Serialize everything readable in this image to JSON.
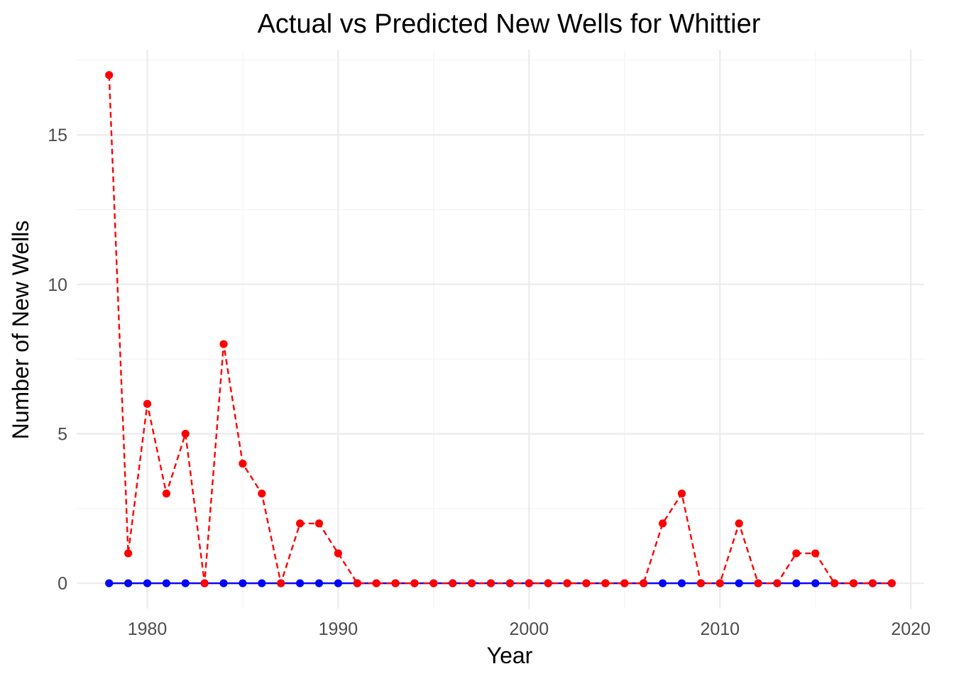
{
  "chart_data": {
    "type": "line",
    "title": "Actual vs Predicted New Wells for Whittier",
    "xlabel": "Year",
    "ylabel": "Number of New Wells",
    "xlim": [
      1976.3,
      2020.7
    ],
    "ylim": [
      -0.85,
      17.85
    ],
    "x_ticks": [
      1980,
      1990,
      2000,
      2010,
      2020
    ],
    "y_ticks": [
      0,
      5,
      10,
      15
    ],
    "grid": true,
    "legend": "none",
    "x": [
      1978,
      1979,
      1980,
      1981,
      1982,
      1983,
      1984,
      1985,
      1986,
      1987,
      1988,
      1989,
      1990,
      1991,
      1992,
      1993,
      1994,
      1995,
      1996,
      1997,
      1998,
      1999,
      2000,
      2001,
      2002,
      2003,
      2004,
      2005,
      2006,
      2007,
      2008,
      2009,
      2010,
      2011,
      2012,
      2013,
      2014,
      2015,
      2016,
      2017,
      2018,
      2019
    ],
    "series": [
      {
        "color": "#0000ff",
        "line_style": "solid",
        "values": [
          0,
          0,
          0,
          0,
          0,
          0,
          0,
          0,
          0,
          0,
          0,
          0,
          0,
          0,
          0,
          0,
          0,
          0,
          0,
          0,
          0,
          0,
          0,
          0,
          0,
          0,
          0,
          0,
          0,
          0,
          0,
          0,
          0,
          0,
          0,
          0,
          0,
          0,
          0,
          0,
          0,
          0
        ]
      },
      {
        "color": "#ff0000",
        "line_style": "dashed",
        "values": [
          17,
          1,
          6,
          3,
          5,
          0,
          8,
          4,
          3,
          0,
          2,
          2,
          1,
          0,
          0,
          0,
          0,
          0,
          0,
          0,
          0,
          0,
          0,
          0,
          0,
          0,
          0,
          0,
          0,
          2,
          3,
          0,
          0,
          2,
          0,
          0,
          1,
          1,
          0,
          0,
          0,
          0
        ]
      }
    ]
  }
}
